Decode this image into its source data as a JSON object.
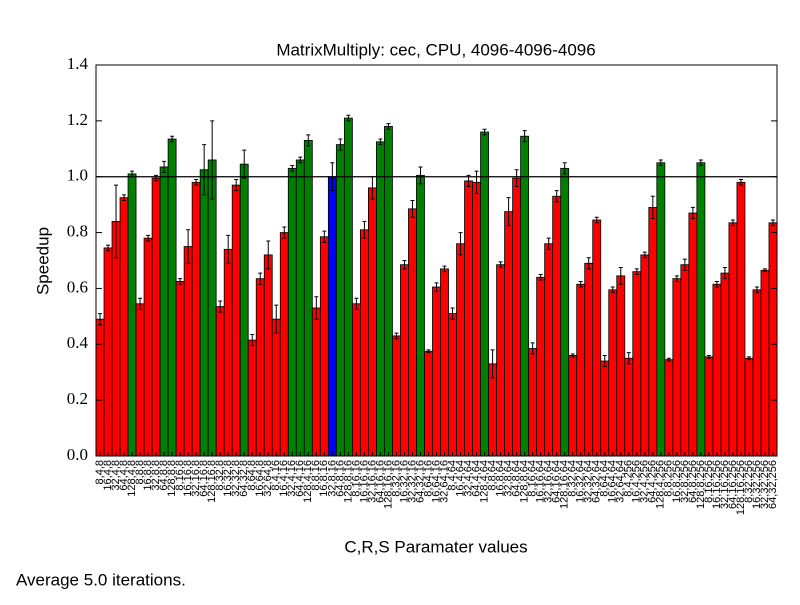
{
  "chart_data": {
    "type": "bar",
    "title": "MatrixMultiply: cec, CPU, 4096-4096-4096",
    "xlabel": "C,R,S Paramater values",
    "ylabel": "Speedup",
    "footer": "Average 5.0 iterations.",
    "ylim": [
      0,
      1.4
    ],
    "yticks": [
      {
        "value": 0,
        "label": "0.0"
      },
      {
        "value": 0.2,
        "label": "0.2"
      },
      {
        "value": 0.4,
        "label": "0.4"
      },
      {
        "value": 0.6,
        "label": "0.6"
      },
      {
        "value": 0.8,
        "label": "0.8"
      },
      {
        "value": 1.0,
        "label": "1.0"
      },
      {
        "value": 1.2,
        "label": "1.2"
      },
      {
        "value": 1.4,
        "label": "1.4"
      }
    ],
    "hline": 1.0,
    "categories": [
      "8,4,8",
      "16,4,8",
      "32,4,8",
      "64,4,8",
      "128,4,8",
      "8,8,8",
      "16,8,8",
      "32,8,8",
      "64,8,8",
      "128,8,8",
      "8,16,8",
      "16,16,8",
      "32,16,8",
      "64,16,8",
      "128,16,8",
      "8,32,8",
      "16,32,8",
      "32,32,8",
      "64,32,8",
      "8,64,8",
      "16,64,8",
      "32,64,8",
      "8,4,16",
      "16,4,16",
      "32,4,16",
      "64,4,16",
      "128,4,16",
      "8,8,16",
      "16,8,16",
      "32,8,16",
      "64,8,16",
      "128,8,16",
      "8,16,16",
      "16,16,16",
      "32,16,16",
      "64,16,16",
      "128,16,16",
      "8,32,16",
      "16,32,16",
      "32,32,16",
      "64,32,16",
      "8,64,16",
      "16,64,16",
      "32,64,16",
      "8,4,64",
      "16,4,64",
      "32,4,64",
      "64,4,64",
      "128,4,64",
      "8,8,64",
      "16,8,64",
      "32,8,64",
      "64,8,64",
      "128,8,64",
      "8,16,64",
      "16,16,64",
      "32,16,64",
      "64,16,64",
      "128,16,64",
      "8,32,64",
      "16,32,64",
      "32,32,64",
      "64,32,64",
      "8,64,64",
      "16,64,64",
      "32,64,64",
      "8,4,256",
      "16,4,256",
      "32,4,256",
      "64,4,256",
      "128,4,256",
      "8,8,256",
      "16,8,256",
      "32,8,256",
      "64,8,256",
      "128,8,256",
      "8,16,256",
      "16,16,256",
      "32,16,256",
      "64,16,256",
      "128,16,256",
      "8,32,256",
      "16,32,256",
      "32,32,256",
      "64,32,256"
    ],
    "values": [
      0.49,
      0.745,
      0.84,
      0.925,
      1.01,
      0.545,
      0.78,
      0.995,
      1.035,
      1.135,
      0.625,
      0.75,
      0.98,
      1.025,
      1.06,
      0.535,
      0.74,
      0.97,
      1.045,
      0.415,
      0.635,
      0.72,
      0.49,
      0.8,
      1.03,
      1.06,
      1.13,
      0.53,
      0.785,
      1.0,
      1.115,
      1.21,
      0.545,
      0.81,
      0.96,
      1.125,
      1.18,
      0.43,
      0.685,
      0.885,
      1.005,
      0.375,
      0.605,
      0.67,
      0.51,
      0.76,
      0.985,
      0.98,
      1.16,
      0.33,
      0.685,
      0.875,
      0.995,
      1.145,
      0.385,
      0.64,
      0.76,
      0.93,
      1.03,
      0.36,
      0.615,
      0.69,
      0.845,
      0.34,
      0.595,
      0.645,
      0.35,
      0.66,
      0.72,
      0.89,
      1.05,
      0.345,
      0.635,
      0.685,
      0.87,
      1.05,
      0.355,
      0.615,
      0.655,
      0.835,
      0.98,
      0.35,
      0.595,
      0.665,
      0.835
    ],
    "errors": [
      0.02,
      0.01,
      0.13,
      0.01,
      0.01,
      0.02,
      0.01,
      0.01,
      0.02,
      0.01,
      0.01,
      0.06,
      0.01,
      0.09,
      0.14,
      0.02,
      0.05,
      0.02,
      0.05,
      0.02,
      0.02,
      0.05,
      0.05,
      0.02,
      0.01,
      0.01,
      0.02,
      0.04,
      0.02,
      0.05,
      0.02,
      0.01,
      0.02,
      0.03,
      0.04,
      0.01,
      0.01,
      0.01,
      0.015,
      0.03,
      0.03,
      0.005,
      0.015,
      0.01,
      0.02,
      0.04,
      0.02,
      0.04,
      0.01,
      0.05,
      0.01,
      0.05,
      0.03,
      0.02,
      0.02,
      0.01,
      0.02,
      0.02,
      0.02,
      0.005,
      0.01,
      0.02,
      0.01,
      0.02,
      0.01,
      0.03,
      0.02,
      0.01,
      0.01,
      0.04,
      0.01,
      0.005,
      0.01,
      0.02,
      0.02,
      0.01,
      0.005,
      0.01,
      0.02,
      0.01,
      0.01,
      0.005,
      0.01,
      0.005,
      0.01
    ],
    "colors": [
      "#ff0000",
      "#ff0000",
      "#ff0000",
      "#ff0000",
      "#008000",
      "#ff0000",
      "#ff0000",
      "#ff0000",
      "#008000",
      "#008000",
      "#ff0000",
      "#ff0000",
      "#ff0000",
      "#008000",
      "#008000",
      "#ff0000",
      "#ff0000",
      "#ff0000",
      "#008000",
      "#ff0000",
      "#ff0000",
      "#ff0000",
      "#ff0000",
      "#ff0000",
      "#008000",
      "#008000",
      "#008000",
      "#ff0000",
      "#ff0000",
      "#0000ff",
      "#008000",
      "#008000",
      "#ff0000",
      "#ff0000",
      "#ff0000",
      "#008000",
      "#008000",
      "#ff0000",
      "#ff0000",
      "#ff0000",
      "#008000",
      "#ff0000",
      "#ff0000",
      "#ff0000",
      "#ff0000",
      "#ff0000",
      "#ff0000",
      "#ff0000",
      "#008000",
      "#ff0000",
      "#ff0000",
      "#ff0000",
      "#ff0000",
      "#008000",
      "#ff0000",
      "#ff0000",
      "#ff0000",
      "#ff0000",
      "#008000",
      "#ff0000",
      "#ff0000",
      "#ff0000",
      "#ff0000",
      "#ff0000",
      "#ff0000",
      "#ff0000",
      "#ff0000",
      "#ff0000",
      "#ff0000",
      "#ff0000",
      "#008000",
      "#ff0000",
      "#ff0000",
      "#ff0000",
      "#ff0000",
      "#008000",
      "#ff0000",
      "#ff0000",
      "#ff0000",
      "#ff0000",
      "#ff0000",
      "#ff0000",
      "#ff0000",
      "#ff0000",
      "#ff0000"
    ]
  }
}
